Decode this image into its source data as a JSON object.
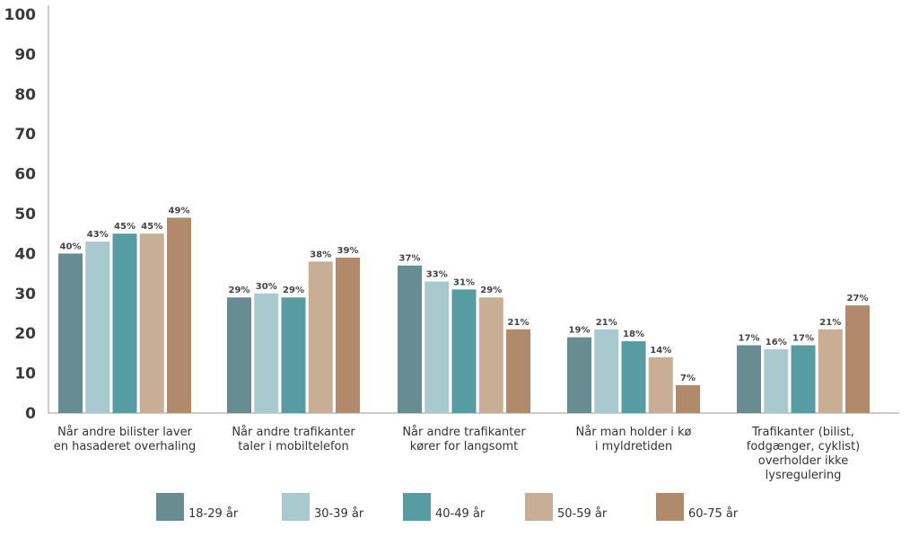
{
  "chart_data": {
    "type": "bar",
    "title": "",
    "xlabel": "",
    "ylabel": "",
    "ylim": [
      0,
      100
    ],
    "yticks": [
      0,
      10,
      20,
      30,
      40,
      50,
      60,
      70,
      80,
      90,
      100
    ],
    "grid": false,
    "legend_position": "bottom",
    "categories": [
      "Når andre bilister laver\nen hasaderet overhaling",
      "Når andre trafikanter\ntaler i mobiltelefon",
      "Når andre trafikanter\nkører for langsomt",
      "Når man holder i kø\ni myldretiden",
      "Trafikanter (bilist,\nfodgænger, cyklist)\noverholder ikke\nlysregulering"
    ],
    "series": [
      {
        "name": "18-29 år",
        "color": "#678d92",
        "values": [
          40,
          29,
          37,
          19,
          17
        ],
        "labels": [
          "40%",
          "29%",
          "37%",
          "19%",
          "17%"
        ]
      },
      {
        "name": "30-39 år",
        "color": "#a8c9ce",
        "values": [
          43,
          30,
          33,
          21,
          16
        ],
        "labels": [
          "43%",
          "30%",
          "33%",
          "21%",
          "16%"
        ]
      },
      {
        "name": "40-49 år",
        "color": "#579ba3",
        "values": [
          45,
          29,
          31,
          18,
          17
        ],
        "labels": [
          "45%",
          "29%",
          "31%",
          "18%",
          "17%"
        ]
      },
      {
        "name": "50-59 år",
        "color": "#c9ae96",
        "values": [
          45,
          38,
          29,
          14,
          21
        ],
        "labels": [
          "45%",
          "38%",
          "29%",
          "14%",
          "21%"
        ]
      },
      {
        "name": "60-75 år",
        "color": "#b08a6a",
        "values": [
          49,
          39,
          21,
          7,
          27
        ],
        "labels": [
          "49%",
          "39%",
          "21%",
          "7%",
          "27%"
        ]
      }
    ]
  }
}
